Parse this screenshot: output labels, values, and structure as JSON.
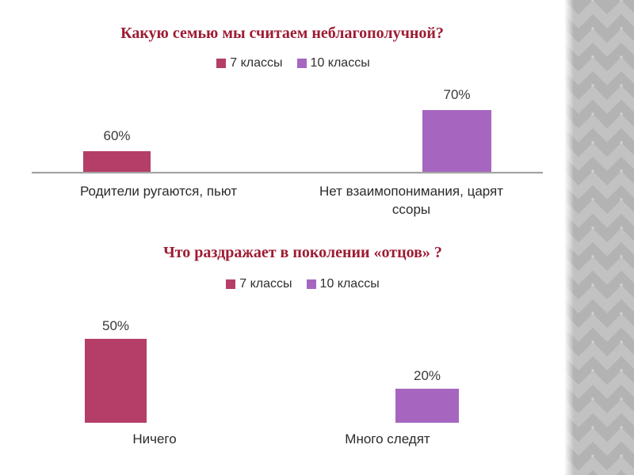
{
  "slide": {
    "type": "presentation-slide",
    "background_color": "#ffffff",
    "decor": {
      "sidebar_pattern": "diamond-checkerboard",
      "sidebar_base_color": "#c2c2c2",
      "sidebar_diamond_color": "#b3b3b3",
      "sidebar_ornament_color": "#cfcfcf"
    }
  },
  "colors": {
    "title_text": "#9e1b32",
    "series_7_klassy": "#b43e68",
    "series_10_klassy": "#a666c0",
    "axis_line": "#a3a3a3",
    "label_text": "#303030"
  },
  "chart_data": [
    {
      "type": "bar",
      "title": "Какую семью мы считаем неблагополучной?",
      "legend_position": "top",
      "legend": [
        {
          "name": "7 классы",
          "color": "#b43e68"
        },
        {
          "name": "10 классы",
          "color": "#a666c0"
        }
      ],
      "categories": [
        "Родители ругаются, пьют",
        "Нет взаимопонимания, царят ссоры"
      ],
      "series": [
        {
          "name": "7 классы",
          "values": [
            60,
            null
          ]
        },
        {
          "name": "10 классы",
          "values": [
            null,
            70
          ]
        }
      ],
      "data_labels": [
        "60%",
        "70%"
      ],
      "xlabel": "",
      "ylabel": "",
      "grid": false,
      "baseline_axis": true
    },
    {
      "type": "bar",
      "title": "Что раздражает в поколении «отцов» ?",
      "legend_position": "top",
      "legend": [
        {
          "name": "7 классы",
          "color": "#b43e68"
        },
        {
          "name": "10 классы",
          "color": "#a666c0"
        }
      ],
      "categories": [
        "Ничего",
        "Много следят"
      ],
      "series": [
        {
          "name": "7 классы",
          "values": [
            50,
            null
          ]
        },
        {
          "name": "10 классы",
          "values": [
            null,
            20
          ]
        }
      ],
      "data_labels": [
        "50%",
        "20%"
      ],
      "xlabel": "",
      "ylabel": "",
      "grid": false,
      "baseline_axis": false
    }
  ]
}
